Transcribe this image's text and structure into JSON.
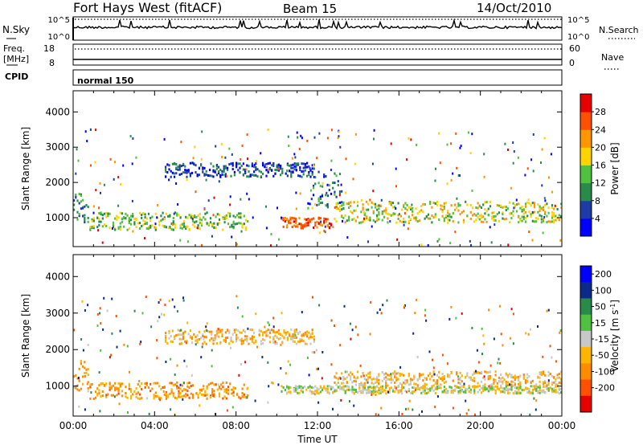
{
  "header": {
    "station": "Fort Hays West (fitACF)",
    "beam": "Beam 15",
    "date": "14/Oct/2010"
  },
  "noise_panel": {
    "left_label": "N.Sky",
    "right_label": "N.Search",
    "left_ticks": [
      "10^5",
      "10^0"
    ],
    "right_ticks": [
      "10^5",
      "10^0"
    ]
  },
  "freq_panel": {
    "left_label_line1": "Freq.",
    "left_label_line2": "[MHz]",
    "right_label": "Nave",
    "left_ticks": [
      "18",
      "8"
    ],
    "right_ticks": [
      "60",
      "0"
    ]
  },
  "cpid": {
    "label": "CPID",
    "value": "normal 150"
  },
  "chart_data": [
    {
      "type": "heatmap",
      "parameter": "Power",
      "ylabel": "Slant Range [km]",
      "xlabel": "",
      "ylim": [
        180,
        4600
      ],
      "y_ticks": [
        "1000",
        "2000",
        "3000",
        "4000"
      ],
      "colorbar": {
        "label": "Power [dB]",
        "range": [
          0,
          32
        ],
        "tick_labels": [
          "4",
          "8",
          "12",
          "16",
          "20",
          "24",
          "28"
        ],
        "colors": [
          "#0000ff",
          "#1e3ca8",
          "#2a8a4a",
          "#50c040",
          "#ffd200",
          "#ff9600",
          "#ff5000",
          "#e60000"
        ]
      },
      "features": [
        {
          "name": "near-range band",
          "t_start_h": 0.0,
          "t_end_h": 0.7,
          "range_km": [
            850,
            1700
          ],
          "typical_dB": 10
        },
        {
          "name": "main scatter band",
          "t_start_h": 0.8,
          "t_end_h": 8.6,
          "range_km": [
            650,
            1150
          ],
          "typical_dB": 14
        },
        {
          "name": "upper band",
          "t_start_h": 4.5,
          "t_end_h": 11.8,
          "range_km": [
            2150,
            2550
          ],
          "typical_dB": 5
        },
        {
          "name": "strong echo",
          "t_start_h": 10.2,
          "t_end_h": 12.8,
          "range_km": [
            700,
            1000
          ],
          "typical_dB": 26
        },
        {
          "name": "descending band",
          "t_start_h": 11.5,
          "t_end_h": 13.2,
          "range_km": [
            1200,
            2400
          ],
          "typical_dB": 8
        },
        {
          "name": "afternoon band",
          "t_start_h": 12.8,
          "t_end_h": 24.0,
          "range_km": [
            850,
            1450
          ],
          "typical_dB": 17
        }
      ]
    },
    {
      "type": "heatmap",
      "parameter": "Velocity",
      "ylabel": "Slant Range [km]",
      "xlabel": "Time UT",
      "ylim": [
        180,
        4600
      ],
      "y_ticks": [
        "1000",
        "2000",
        "3000",
        "4000"
      ],
      "x_ticks": [
        "00:00",
        "04:00",
        "08:00",
        "12:00",
        "16:00",
        "20:00",
        "00:00"
      ],
      "colorbar": {
        "label_main": "Velocity [m s",
        "label_sup": "-1",
        "label_end": "]",
        "tick_labels": [
          "200",
          "100",
          "50",
          "15",
          "-15",
          "-50",
          "-100",
          "-200"
        ],
        "colors": [
          "#0000ff",
          "#0a2a8c",
          "#2a8a4a",
          "#50c040",
          "#c8c8c8",
          "#ffb400",
          "#ff8c00",
          "#ff5000",
          "#e60000"
        ]
      },
      "features": [
        {
          "name": "near-range band",
          "t_start_h": 0.0,
          "t_end_h": 0.7,
          "range_km": [
            850,
            1700
          ],
          "typical_vel": -40
        },
        {
          "name": "main scatter band",
          "t_start_h": 0.8,
          "t_end_h": 8.6,
          "range_km": [
            650,
            1100
          ],
          "typical_vel": -70
        },
        {
          "name": "upper band",
          "t_start_h": 4.5,
          "t_end_h": 11.8,
          "range_km": [
            2150,
            2550
          ],
          "typical_vel": -30
        },
        {
          "name": "evening echo",
          "t_start_h": 10.2,
          "t_end_h": 24.0,
          "range_km": [
            800,
            1000
          ],
          "typical_vel": 0
        },
        {
          "name": "afternoon band",
          "t_start_h": 12.8,
          "t_end_h": 24.0,
          "range_km": [
            1000,
            1400
          ],
          "typical_vel": -30
        }
      ]
    }
  ]
}
